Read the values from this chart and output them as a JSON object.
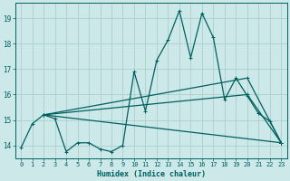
{
  "xlabel": "Humidex (Indice chaleur)",
  "xlim": [
    -0.5,
    23.5
  ],
  "ylim": [
    13.5,
    19.6
  ],
  "xticks": [
    0,
    1,
    2,
    3,
    4,
    5,
    6,
    7,
    8,
    9,
    10,
    11,
    12,
    13,
    14,
    15,
    16,
    17,
    18,
    19,
    20,
    21,
    22,
    23
  ],
  "yticks": [
    14,
    15,
    16,
    17,
    18,
    19
  ],
  "background_color": "#cce8e8",
  "grid_color": "#aacfcf",
  "line_color": "#006060",
  "main_line": {
    "x": [
      0,
      1,
      2,
      3,
      4,
      5,
      6,
      7,
      8,
      9,
      10,
      11,
      12,
      13,
      14,
      15,
      16,
      17,
      18,
      19,
      20,
      21,
      22,
      23
    ],
    "y": [
      13.9,
      14.85,
      15.2,
      15.05,
      13.75,
      14.1,
      14.1,
      13.85,
      13.75,
      14.0,
      16.9,
      15.35,
      17.35,
      18.15,
      19.3,
      17.45,
      19.2,
      18.25,
      15.8,
      16.65,
      15.95,
      15.25,
      14.95,
      14.1
    ]
  },
  "trend_lines": [
    {
      "x": [
        2,
        23
      ],
      "y": [
        15.2,
        14.1
      ]
    },
    {
      "x": [
        2,
        20,
        23
      ],
      "y": [
        15.2,
        16.0,
        14.1
      ]
    },
    {
      "x": [
        2,
        20,
        23
      ],
      "y": [
        15.2,
        16.65,
        14.1
      ]
    }
  ],
  "marker": "+",
  "markersize": 3.5,
  "linewidth": 0.9
}
